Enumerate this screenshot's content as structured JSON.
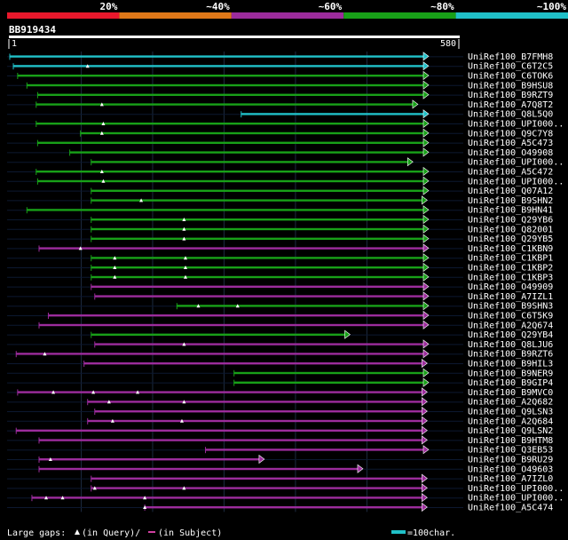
{
  "colors": {
    "background": "#000000",
    "gridline": "#1c2a40",
    "red": "#e8182c",
    "orange": "#e07818",
    "purple": "#9c2c9c",
    "green": "#18a018",
    "cyan": "#20c0c8",
    "track": "#ffffff",
    "text": "#ffffff"
  },
  "legend_bar": {
    "segments": [
      {
        "label": "20%",
        "color": "red"
      },
      {
        "label": "~40%",
        "color": "orange"
      },
      {
        "label": "~60%",
        "color": "purple"
      },
      {
        "label": "~80%",
        "color": "green"
      },
      {
        "label": "~100%",
        "color": "cyan"
      }
    ]
  },
  "query": {
    "id": "BB919434",
    "start_label": "1",
    "end_label": "580",
    "length": 580
  },
  "hits": [
    {
      "name": "UniRef100_B7FMH8",
      "start": 1,
      "end": 580,
      "color": "cyan",
      "gaps": []
    },
    {
      "name": "UniRef100_C6T2C5",
      "start": 6,
      "end": 580,
      "color": "cyan",
      "gaps": [
        110
      ]
    },
    {
      "name": "UniRef100_C6TOK6",
      "start": 12,
      "end": 580,
      "color": "green",
      "gaps": []
    },
    {
      "name": "UniRef100_B9HSU8",
      "start": 25,
      "end": 580,
      "color": "green",
      "gaps": []
    },
    {
      "name": "UniRef100_B9RZT9",
      "start": 40,
      "end": 580,
      "color": "green",
      "gaps": []
    },
    {
      "name": "UniRef100_A7Q8T2",
      "start": 38,
      "end": 565,
      "color": "green",
      "gaps": [
        130
      ]
    },
    {
      "name": "UniRef100_Q8L5Q0",
      "start": 325,
      "end": 580,
      "color": "cyan",
      "gaps": []
    },
    {
      "name": "UniRef100_UPI000..",
      "start": 38,
      "end": 580,
      "color": "green",
      "gaps": [
        132
      ]
    },
    {
      "name": "UniRef100_Q9C7Y8",
      "start": 100,
      "end": 580,
      "color": "green",
      "gaps": [
        130
      ]
    },
    {
      "name": "UniRef100_A5C473",
      "start": 40,
      "end": 580,
      "color": "green",
      "gaps": []
    },
    {
      "name": "UniRef100_O49908",
      "start": 85,
      "end": 580,
      "color": "green",
      "gaps": []
    },
    {
      "name": "UniRef100_UPI000..",
      "start": 115,
      "end": 558,
      "color": "green",
      "gaps": []
    },
    {
      "name": "UniRef100_A5C472",
      "start": 38,
      "end": 580,
      "color": "green",
      "gaps": [
        130
      ]
    },
    {
      "name": "UniRef100_UPI000..",
      "start": 40,
      "end": 580,
      "color": "green",
      "gaps": [
        132
      ]
    },
    {
      "name": "UniRef100_Q07A12",
      "start": 115,
      "end": 580,
      "color": "green",
      "gaps": []
    },
    {
      "name": "UniRef100_B9SHN2",
      "start": 115,
      "end": 578,
      "color": "green",
      "gaps": [
        185
      ]
    },
    {
      "name": "UniRef100_B9HN41",
      "start": 25,
      "end": 580,
      "color": "green",
      "gaps": []
    },
    {
      "name": "UniRef100_Q29YB6",
      "start": 115,
      "end": 580,
      "color": "green",
      "gaps": [
        245
      ]
    },
    {
      "name": "UniRef100_Q82001",
      "start": 115,
      "end": 580,
      "color": "green",
      "gaps": [
        245
      ]
    },
    {
      "name": "UniRef100_Q29YB5",
      "start": 115,
      "end": 580,
      "color": "green",
      "gaps": [
        245
      ]
    },
    {
      "name": "UniRef100_C1KBN9",
      "start": 42,
      "end": 580,
      "color": "purple",
      "gaps": [
        100
      ]
    },
    {
      "name": "UniRef100_C1KBP1",
      "start": 115,
      "end": 580,
      "color": "green",
      "gaps": [
        148,
        247
      ]
    },
    {
      "name": "UniRef100_C1KBP2",
      "start": 115,
      "end": 580,
      "color": "green",
      "gaps": [
        148,
        247
      ]
    },
    {
      "name": "UniRef100_C1KBP3",
      "start": 115,
      "end": 580,
      "color": "green",
      "gaps": [
        148,
        247
      ]
    },
    {
      "name": "UniRef100_O49909",
      "start": 115,
      "end": 580,
      "color": "purple",
      "gaps": []
    },
    {
      "name": "UniRef100_A7IZL1",
      "start": 120,
      "end": 580,
      "color": "purple",
      "gaps": []
    },
    {
      "name": "UniRef100_B9SHN3",
      "start": 235,
      "end": 580,
      "color": "green",
      "gaps": [
        265,
        320
      ]
    },
    {
      "name": "UniRef100_C6T5K9",
      "start": 55,
      "end": 580,
      "color": "purple",
      "gaps": []
    },
    {
      "name": "UniRef100_A2Q674",
      "start": 42,
      "end": 580,
      "color": "purple",
      "gaps": []
    },
    {
      "name": "UniRef100_Q29YB4",
      "start": 115,
      "end": 470,
      "color": "green",
      "gaps": []
    },
    {
      "name": "UniRef100_Q8LJU6",
      "start": 120,
      "end": 580,
      "color": "purple",
      "gaps": [
        245
      ]
    },
    {
      "name": "UniRef100_B9RZT6",
      "start": 10,
      "end": 580,
      "color": "purple",
      "gaps": [
        50
      ]
    },
    {
      "name": "UniRef100_B9HIL3",
      "start": 105,
      "end": 578,
      "color": "purple",
      "gaps": []
    },
    {
      "name": "UniRef100_B9NER9",
      "start": 315,
      "end": 580,
      "color": "green",
      "gaps": []
    },
    {
      "name": "UniRef100_B9GIP4",
      "start": 315,
      "end": 580,
      "color": "green",
      "gaps": []
    },
    {
      "name": "UniRef100_B9MVC0",
      "start": 12,
      "end": 578,
      "color": "purple",
      "gaps": [
        62,
        118,
        180
      ]
    },
    {
      "name": "UniRef100_A2Q682",
      "start": 110,
      "end": 578,
      "color": "purple",
      "gaps": [
        140,
        245
      ]
    },
    {
      "name": "UniRef100_Q9LSN3",
      "start": 120,
      "end": 578,
      "color": "purple",
      "gaps": []
    },
    {
      "name": "UniRef100_A2Q684",
      "start": 110,
      "end": 578,
      "color": "purple",
      "gaps": [
        145,
        242
      ]
    },
    {
      "name": "UniRef100_Q9LSN2",
      "start": 10,
      "end": 578,
      "color": "purple",
      "gaps": []
    },
    {
      "name": "UniRef100_B9HTM8",
      "start": 42,
      "end": 578,
      "color": "purple",
      "gaps": []
    },
    {
      "name": "UniRef100_Q3EB53",
      "start": 275,
      "end": 580,
      "color": "purple",
      "gaps": []
    },
    {
      "name": "UniRef100_B9RU29",
      "start": 42,
      "end": 350,
      "color": "purple",
      "gaps": [
        58
      ]
    },
    {
      "name": "UniRef100_O49603",
      "start": 42,
      "end": 488,
      "color": "purple",
      "gaps": []
    },
    {
      "name": "UniRef100_A7IZL0",
      "start": 115,
      "end": 578,
      "color": "purple",
      "gaps": []
    },
    {
      "name": "UniRef100_UPI000..",
      "start": 115,
      "end": 578,
      "color": "purple",
      "gaps": [
        120,
        245
      ]
    },
    {
      "name": "UniRef100_UPI000..",
      "start": 32,
      "end": 578,
      "color": "purple",
      "gaps": [
        52,
        75,
        190
      ]
    },
    {
      "name": "UniRef100_A5C474",
      "start": 190,
      "end": 578,
      "color": "purple",
      "gaps": [
        190
      ]
    }
  ],
  "footer": {
    "large_gaps_label": "Large gaps:",
    "query_gap_label": "(in Query)/",
    "subject_gap_label": "(in Subject)",
    "scale_label": "=100char."
  }
}
